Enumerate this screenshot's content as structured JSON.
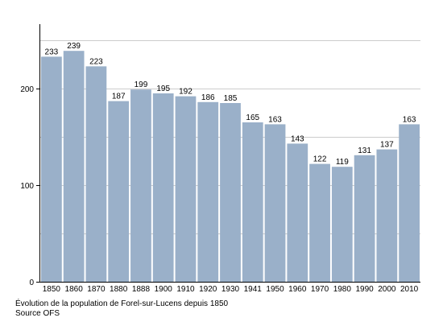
{
  "chart_data": {
    "type": "bar",
    "categories": [
      "1850",
      "1860",
      "1870",
      "1880",
      "1888",
      "1900",
      "1910",
      "1920",
      "1930",
      "1941",
      "1950",
      "1960",
      "1970",
      "1980",
      "1990",
      "2000",
      "2010"
    ],
    "values": [
      233,
      239,
      223,
      187,
      199,
      195,
      192,
      186,
      185,
      165,
      163,
      143,
      122,
      119,
      131,
      137,
      163
    ],
    "data_labels": [
      "233",
      "239",
      "223",
      "187",
      "199",
      "195",
      "192",
      "186",
      "185",
      "165",
      "163",
      "143",
      "122",
      "119",
      "131",
      "137",
      "163"
    ],
    "yticks": [
      0,
      100,
      200
    ],
    "ytick_labels": [
      "0",
      "100",
      "200"
    ],
    "ylim": [
      0,
      250
    ],
    "grid": true,
    "legend": "none",
    "bar_color": "#9ab0c9",
    "grid_color": "#cccccc",
    "axis_color": "#000000",
    "caption": "Évolution de la population de Forel-sur-Lucens depuis 1850",
    "source": "Source OFS"
  }
}
